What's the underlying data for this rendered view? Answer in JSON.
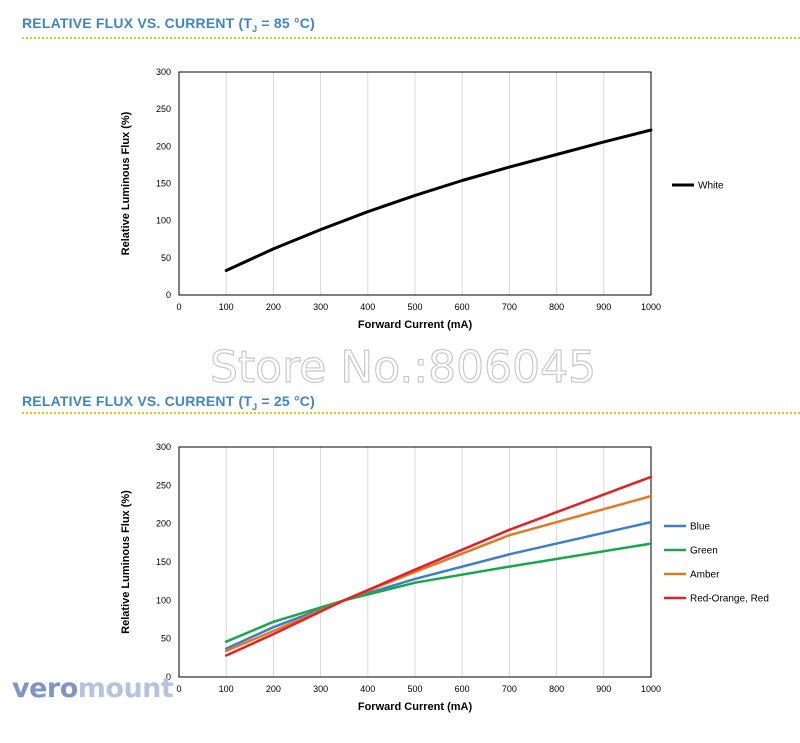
{
  "sections": [
    {
      "title_main": "RELATIVE FLUX VS. CURRENT (T",
      "title_sub": "J",
      "title_tail": " = 85 °C)"
    },
    {
      "title_main": "RELATIVE FLUX VS. CURRENT (T",
      "title_sub": "J",
      "title_tail": " = 25 °C)"
    }
  ],
  "watermark": "Store No.:806045",
  "logo": {
    "part1": "vero",
    "part2": "mount"
  },
  "chart_data": [
    {
      "type": "line",
      "xlabel": "Forward Current (mA)",
      "ylabel": "Relative Luminous Flux (%)",
      "xlim": [
        0,
        1000
      ],
      "ylim": [
        0,
        300
      ],
      "xticks": [
        0,
        100,
        200,
        300,
        400,
        500,
        600,
        700,
        800,
        900,
        1000
      ],
      "yticks": [
        0,
        50,
        100,
        150,
        200,
        250,
        300
      ],
      "grid": "vertical",
      "legend_position": "right",
      "series": [
        {
          "name": "White",
          "color": "#000000",
          "x": [
            100,
            200,
            300,
            400,
            500,
            600,
            700,
            800,
            900,
            1000
          ],
          "values": [
            33,
            62,
            88,
            112,
            134,
            154,
            172,
            189,
            206,
            222
          ]
        }
      ]
    },
    {
      "type": "line",
      "xlabel": "Forward Current (mA)",
      "ylabel": "Relative Luminous Flux (%)",
      "xlim": [
        0,
        1000
      ],
      "ylim": [
        0,
        300
      ],
      "xticks": [
        0,
        100,
        200,
        300,
        400,
        500,
        600,
        700,
        800,
        900,
        1000
      ],
      "yticks": [
        0,
        50,
        100,
        150,
        200,
        250,
        300
      ],
      "grid": "vertical",
      "legend_position": "right",
      "series": [
        {
          "name": "Blue",
          "color": "#3d7fc9",
          "x": [
            100,
            200,
            350,
            500,
            700,
            1000
          ],
          "values": [
            37,
            65,
            100,
            128,
            160,
            202
          ]
        },
        {
          "name": "Green",
          "color": "#17a84a",
          "x": [
            100,
            200,
            350,
            500,
            700,
            1000
          ],
          "values": [
            46,
            72,
            100,
            123,
            144,
            174
          ]
        },
        {
          "name": "Amber",
          "color": "#e07a24",
          "x": [
            100,
            200,
            350,
            500,
            700,
            1000
          ],
          "values": [
            34,
            60,
            100,
            137,
            185,
            236
          ]
        },
        {
          "name": "Red-Orange, Red",
          "color": "#e32126",
          "x": [
            100,
            200,
            350,
            500,
            700,
            1000
          ],
          "values": [
            28,
            56,
            100,
            140,
            192,
            261
          ]
        }
      ]
    }
  ]
}
